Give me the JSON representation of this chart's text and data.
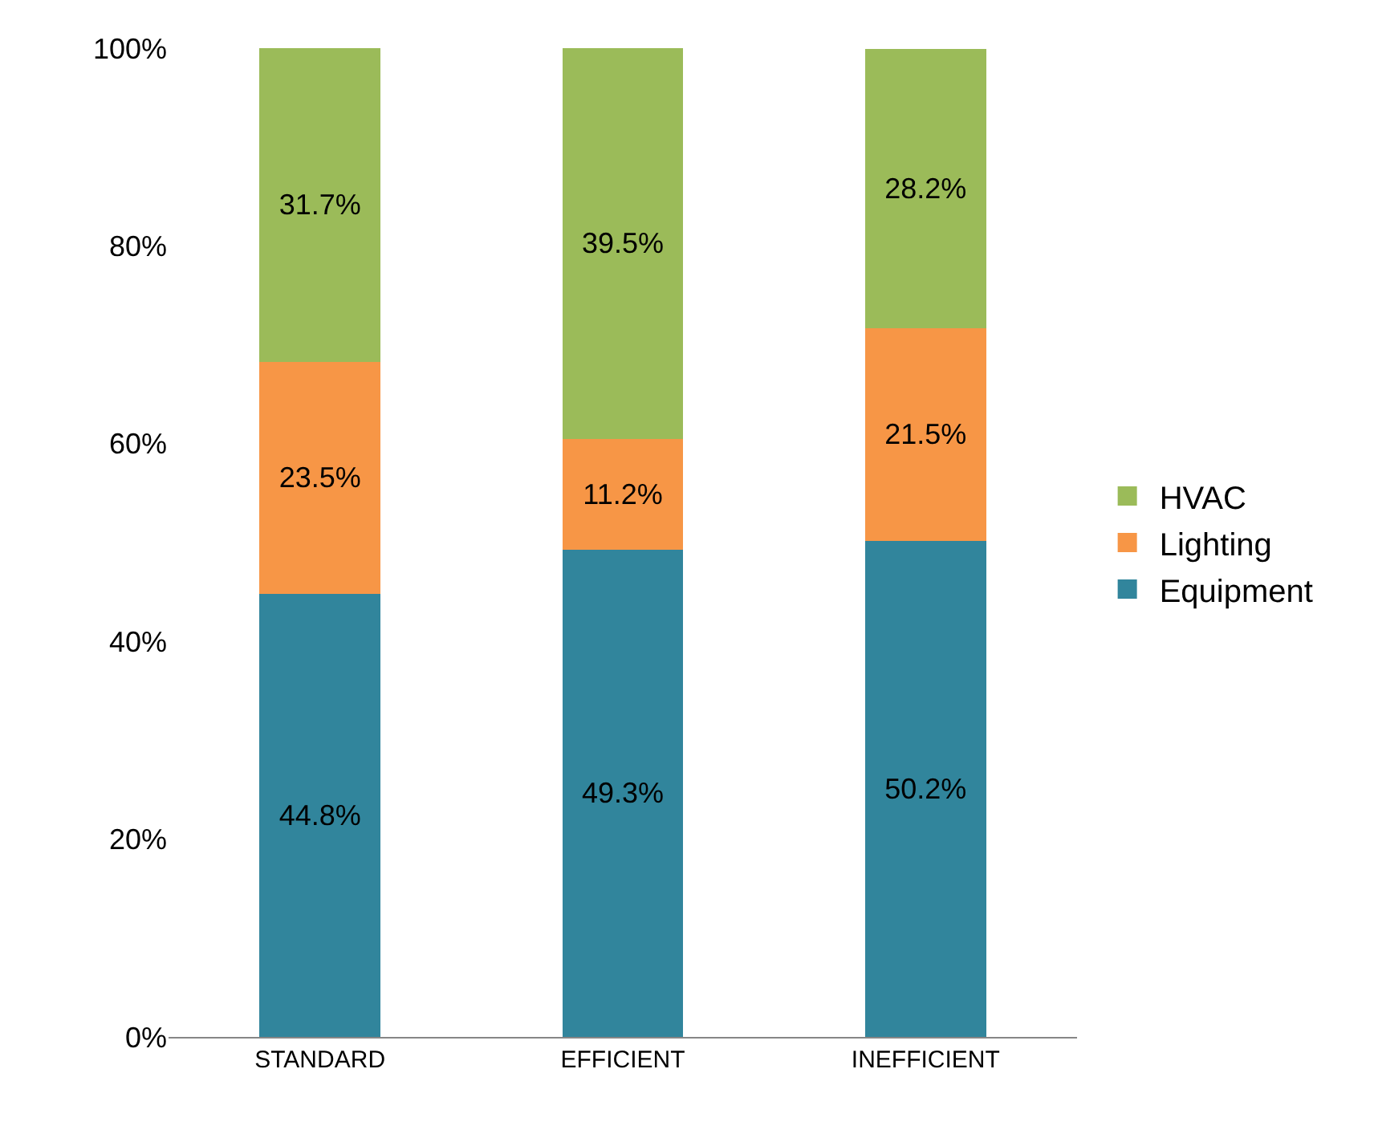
{
  "chart_data": {
    "type": "bar",
    "stacked": true,
    "categories": [
      "STANDARD",
      "EFFICIENT",
      "INEFFICIENT"
    ],
    "series": [
      {
        "name": "Equipment",
        "color": "#31859c",
        "values": [
          44.8,
          49.3,
          50.2
        ],
        "value_labels": [
          "44.8%",
          "49.3%",
          "50.2%"
        ]
      },
      {
        "name": "Lighting",
        "color": "#f79646",
        "values": [
          23.5,
          11.2,
          21.5
        ],
        "value_labels": [
          "23.5%",
          "11.2%",
          "21.5%"
        ]
      },
      {
        "name": "HVAC",
        "color": "#9bbb59",
        "values": [
          31.7,
          39.5,
          28.2
        ],
        "value_labels": [
          "31.7%",
          "39.5%",
          "28.2%"
        ]
      }
    ],
    "ylim": [
      0,
      100
    ],
    "yticks": [
      {
        "value": 0,
        "label": "0%"
      },
      {
        "value": 20,
        "label": "20%"
      },
      {
        "value": 40,
        "label": "40%"
      },
      {
        "value": 60,
        "label": "60%"
      },
      {
        "value": 80,
        "label": "80%"
      },
      {
        "value": 100,
        "label": "100%"
      }
    ],
    "grid": false,
    "legend": "right"
  }
}
